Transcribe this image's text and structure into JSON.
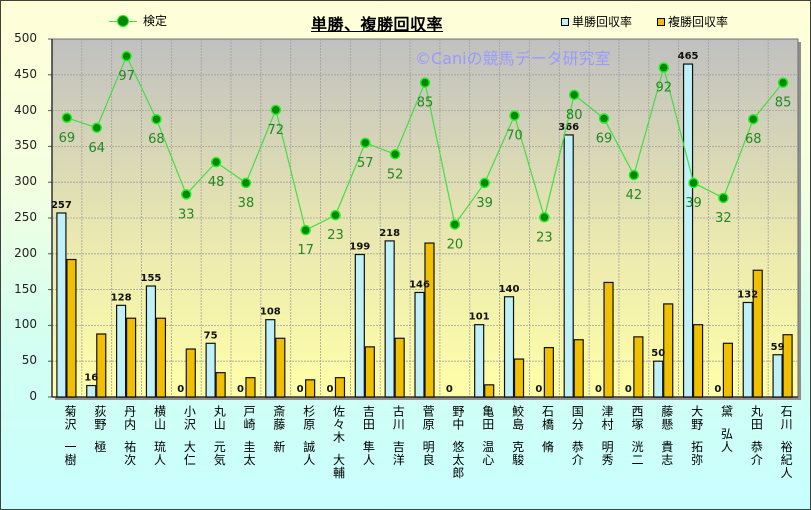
{
  "title": "単勝、複勝回収率",
  "watermark": "©Caniの競馬データ研究室",
  "legend": {
    "line_label": "検定",
    "bar1_label": "単勝回収率",
    "bar2_label": "複勝回収率"
  },
  "colors": {
    "bar1": "#c0f0f8",
    "bar2": "#f0c000",
    "line": "#44dd44",
    "marker": "#008800",
    "line_label": "#228822",
    "plot_top": "#c0c0c0",
    "plot_bottom": "#ffffa8"
  },
  "chart_data": {
    "type": "bar",
    "title": "単勝、複勝回収率",
    "xlabel": "",
    "ylabel": "",
    "ylim": [
      0,
      500
    ],
    "yticks": [
      0,
      50,
      100,
      150,
      200,
      250,
      300,
      350,
      400,
      450,
      500
    ],
    "grid": true,
    "legend_position": "top",
    "categories": [
      "菊沢 一樹",
      "荻野 極",
      "丹内 祐次",
      "横山 琉人",
      "小沢 大仁",
      "丸山 元気",
      "戸崎 圭太",
      "斎藤 新",
      "杉原 誠人",
      "佐々木 大輔",
      "吉田 隼人",
      "古川 吉洋",
      "菅原 明良",
      "野中 悠太郎",
      "亀田 温心",
      "鮫島 克駿",
      "石橋 脩",
      "国分 恭介",
      "津村 明秀",
      "西塚 洸二",
      "藤懸 貴志",
      "大野 拓弥",
      "黛 弘人",
      "丸田 恭介",
      "石川 裕紀人"
    ],
    "series": [
      {
        "name": "単勝回収率",
        "type": "bar",
        "values": [
          257,
          16,
          128,
          155,
          0,
          75,
          0,
          108,
          0,
          0,
          199,
          218,
          146,
          0,
          101,
          140,
          0,
          366,
          0,
          0,
          50,
          465,
          0,
          132,
          59
        ]
      },
      {
        "name": "複勝回収率",
        "type": "bar",
        "values": [
          192,
          88,
          110,
          110,
          67,
          34,
          27,
          82,
          24,
          27,
          70,
          82,
          215,
          0,
          17,
          53,
          69,
          80,
          160,
          84,
          130,
          101,
          75,
          177,
          87
        ]
      },
      {
        "name": "検定",
        "type": "line",
        "plot_y": [
          390,
          376,
          476,
          388,
          283,
          328,
          299,
          401,
          233,
          254,
          355,
          339,
          439,
          241,
          299,
          393,
          251,
          422,
          389,
          310,
          460,
          299,
          278,
          388,
          439
        ],
        "labels": [
          69,
          64,
          97,
          68,
          33,
          48,
          38,
          72,
          17,
          23,
          57,
          52,
          85,
          20,
          39,
          70,
          23,
          80,
          69,
          42,
          92,
          39,
          32,
          68,
          85
        ]
      }
    ]
  }
}
